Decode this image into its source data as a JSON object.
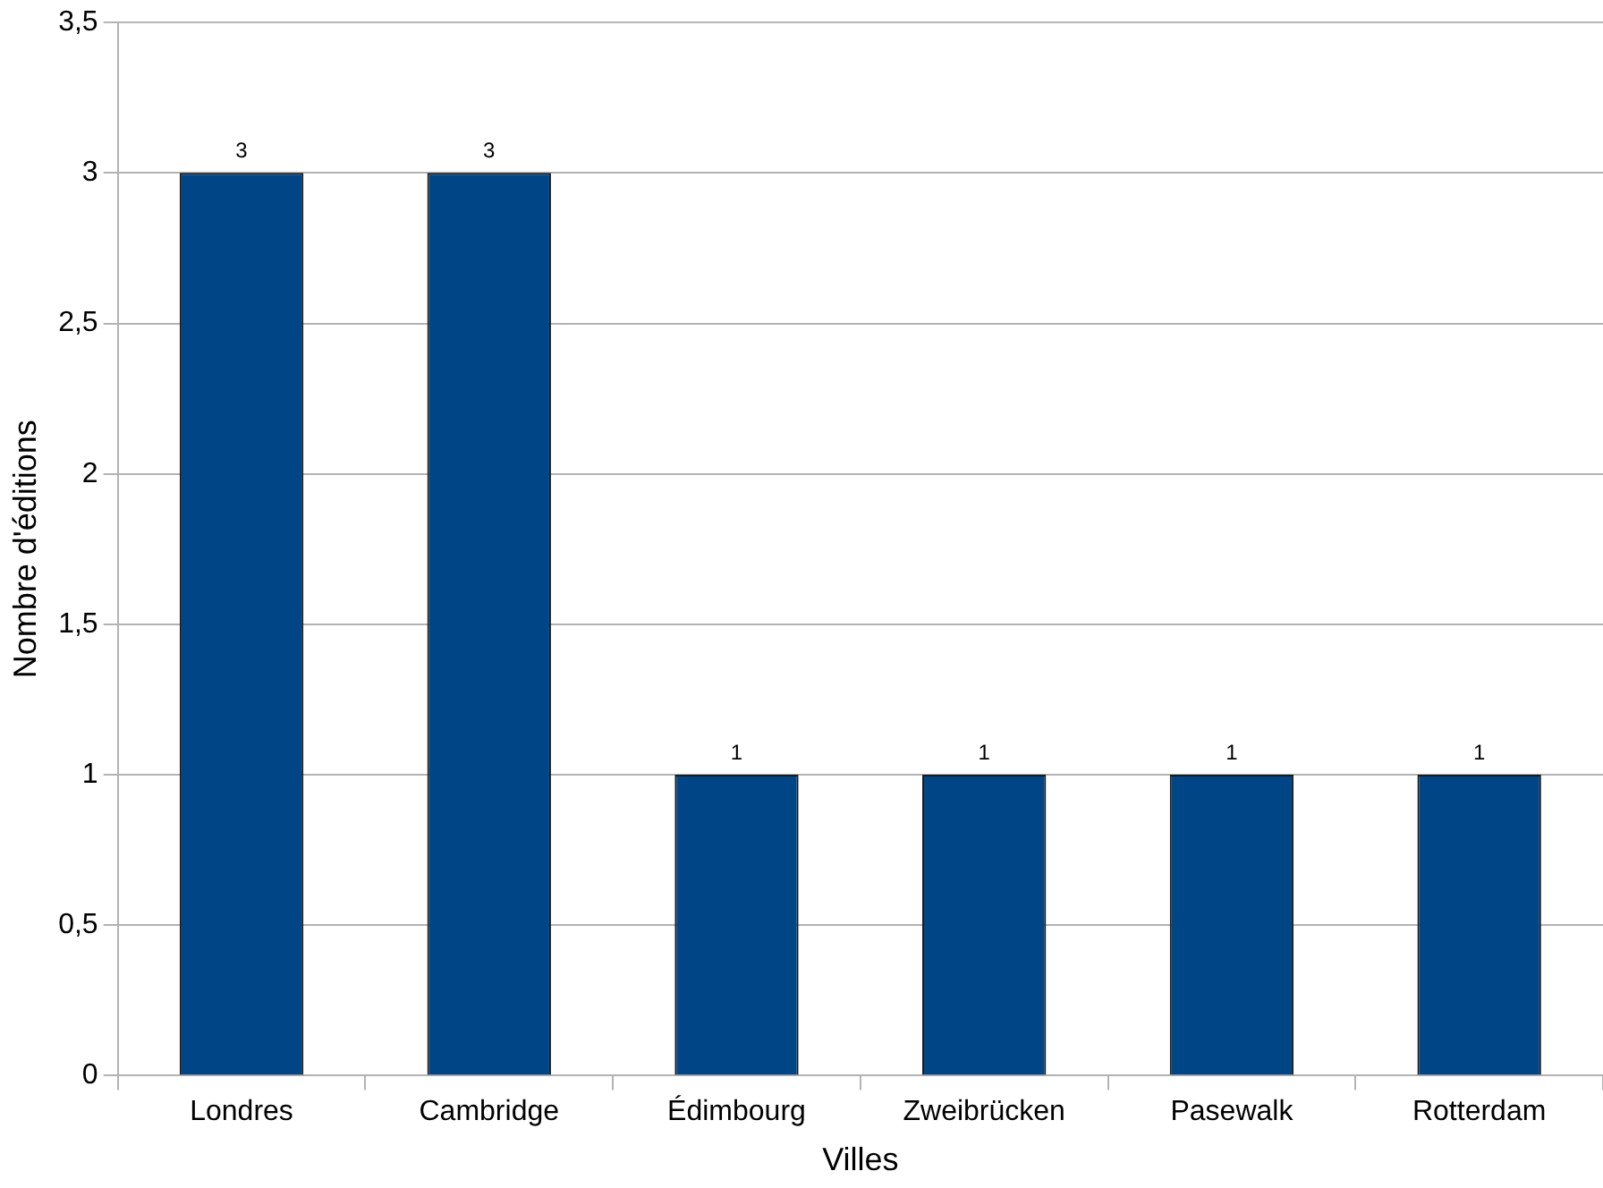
{
  "chart_data": {
    "type": "bar",
    "xlabel": "Villes",
    "ylabel": "Nombre d'éditions",
    "categories": [
      "Londres",
      "Cambridge",
      "Édimbourg",
      "Zweibrücken",
      "Pasewalk",
      "Rotterdam"
    ],
    "values": [
      3,
      3,
      1,
      1,
      1,
      1
    ],
    "color": "#004586",
    "ylim": [
      0,
      3.5
    ],
    "yticks": [
      0,
      {
        "value": 0.5,
        "label": "0,5"
      },
      1,
      {
        "value": 1.5,
        "label": "1,5"
      },
      2,
      {
        "value": 2.5,
        "label": "2,5"
      },
      3,
      {
        "value": 3.5,
        "label": "3,5"
      }
    ],
    "grid": "y",
    "legend": false,
    "data_labels": true
  }
}
